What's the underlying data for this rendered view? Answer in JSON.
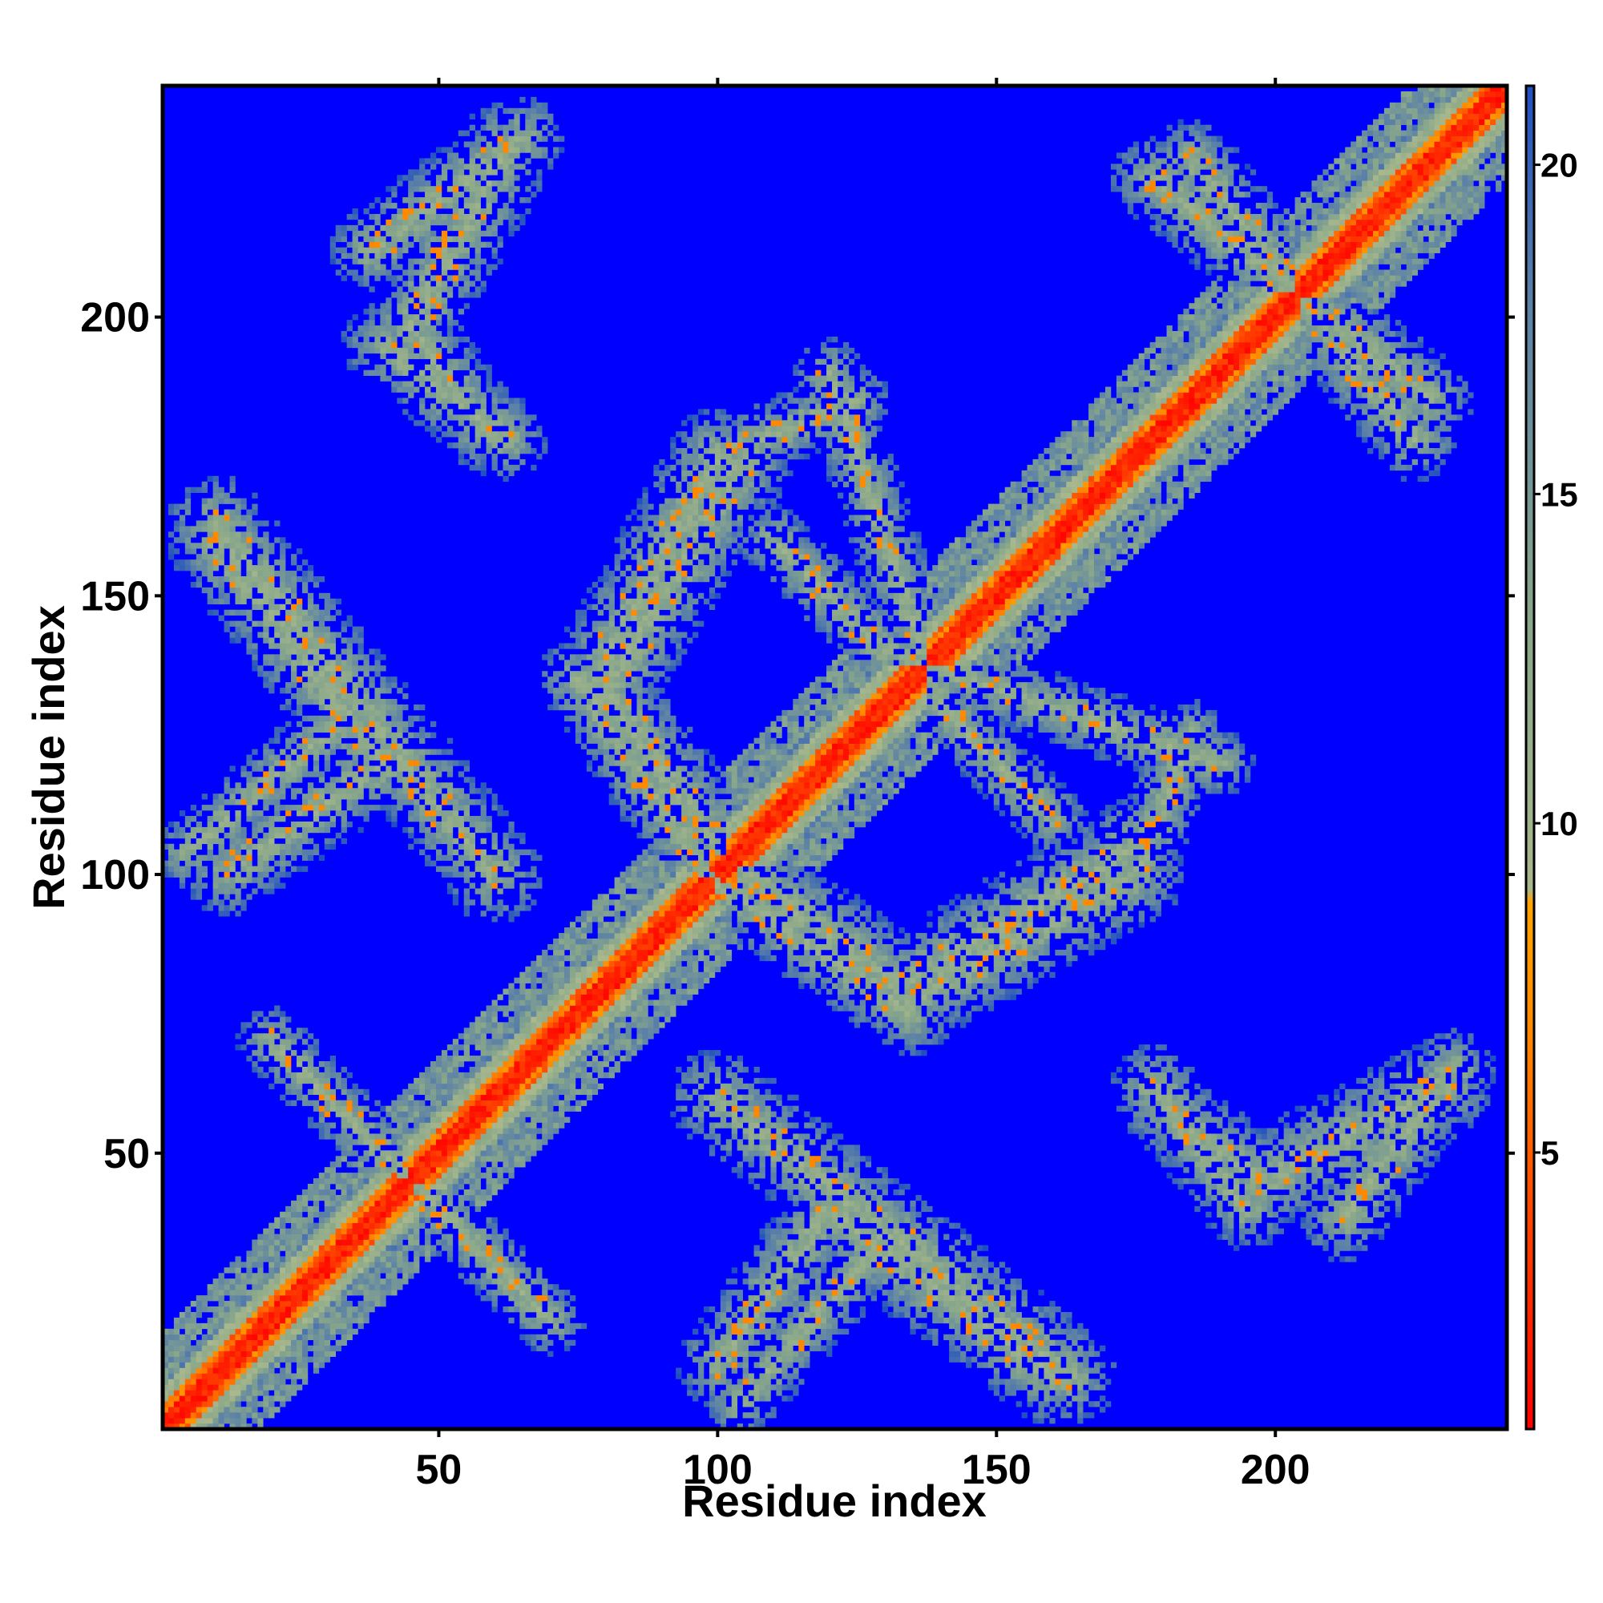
{
  "chart_data": {
    "type": "heatmap",
    "title": "",
    "xlabel": "Residue index",
    "ylabel": "Residue index",
    "xlim": [
      1,
      241
    ],
    "ylim": [
      1,
      241
    ],
    "x_ticks": [
      50,
      100,
      150,
      200
    ],
    "y_ticks": [
      50,
      100,
      150,
      200
    ],
    "colorbar": {
      "range": [
        0.8,
        21.2
      ],
      "ticks": [
        5,
        10,
        15,
        20
      ],
      "stops": [
        {
          "v": 0.8,
          "color": "#ff0000"
        },
        {
          "v": 4.0,
          "color": "#ff4500"
        },
        {
          "v": 7.0,
          "color": "#ff8c00"
        },
        {
          "v": 8.8,
          "color": "#ffa500"
        },
        {
          "v": 9.0,
          "color": "#aab88c"
        },
        {
          "v": 13.0,
          "color": "#8aa88a"
        },
        {
          "v": 18.0,
          "color": "#5a80a8"
        },
        {
          "v": 21.2,
          "color": "#2050c0"
        }
      ],
      "background_color": "#0000ff"
    },
    "matrix_shape": "symmetric contact map, 241 x 241 residues",
    "contact_bands": [
      {
        "from": [
          1,
          1
        ],
        "to": [
          241,
          241
        ],
        "width": 10,
        "kind": "diagonal"
      },
      {
        "from": [
          10,
          163
        ],
        "to": [
          60,
          100
        ],
        "width": 7
      },
      {
        "from": [
          5,
          104
        ],
        "to": [
          35,
          130
        ],
        "width": 5
      },
      {
        "from": [
          45,
          45
        ],
        "to": [
          70,
          20
        ],
        "width": 5
      },
      {
        "from": [
          38,
          212
        ],
        "to": [
          65,
          232
        ],
        "width": 6
      },
      {
        "from": [
          40,
          195
        ],
        "to": [
          62,
          178
        ],
        "width": 6
      },
      {
        "from": [
          80,
          133
        ],
        "to": [
          105,
          175
        ],
        "width": 7
      },
      {
        "from": [
          75,
          135
        ],
        "to": [
          100,
          98
        ],
        "width": 6
      },
      {
        "from": [
          105,
          100
        ],
        "to": [
          135,
          78
        ],
        "width": 7
      },
      {
        "from": [
          135,
          78
        ],
        "to": [
          175,
          100
        ],
        "width": 7
      },
      {
        "from": [
          175,
          100
        ],
        "to": [
          185,
          125
        ],
        "width": 5
      },
      {
        "from": [
          100,
          12
        ],
        "to": [
          120,
          40
        ],
        "width": 6
      },
      {
        "from": [
          120,
          40
        ],
        "to": [
          160,
          10
        ],
        "width": 7
      },
      {
        "from": [
          180,
          58
        ],
        "to": [
          198,
          45
        ],
        "width": 6
      },
      {
        "from": [
          198,
          45
        ],
        "to": [
          230,
          62
        ],
        "width": 7
      },
      {
        "from": [
          185,
          228
        ],
        "to": [
          225,
          178
        ],
        "width": 6
      },
      {
        "from": [
          120,
          190
        ],
        "to": [
          140,
          130
        ],
        "width": 5
      },
      {
        "from": [
          140,
          130
        ],
        "to": [
          160,
          110
        ],
        "width": 5
      }
    ]
  }
}
